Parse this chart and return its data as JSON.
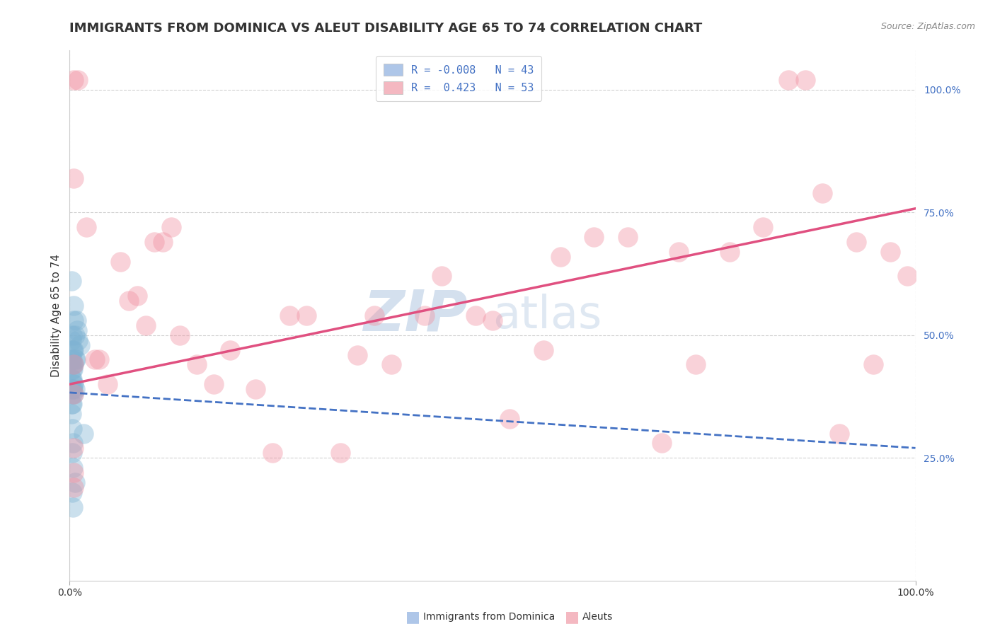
{
  "title": "IMMIGRANTS FROM DOMINICA VS ALEUT DISABILITY AGE 65 TO 74 CORRELATION CHART",
  "source": "Source: ZipAtlas.com",
  "ylabel": "Disability Age 65 to 74",
  "xlim": [
    0.0,
    1.0
  ],
  "ylim": [
    0.0,
    1.08
  ],
  "y_tick_positions": [
    0.25,
    0.5,
    0.75,
    1.0
  ],
  "y_tick_labels": [
    "25.0%",
    "50.0%",
    "75.0%",
    "100.0%"
  ],
  "x_tick_positions": [
    0.0,
    1.0
  ],
  "x_tick_labels": [
    "0.0%",
    "100.0%"
  ],
  "blue_scatter_x": [
    0.005,
    0.008,
    0.003,
    0.006,
    0.009,
    0.002,
    0.003,
    0.004,
    0.005,
    0.007,
    0.003,
    0.002,
    0.004,
    0.003,
    0.005,
    0.006,
    0.003,
    0.004,
    0.002,
    0.003,
    0.004,
    0.005,
    0.006,
    0.003,
    0.002,
    0.004,
    0.003,
    0.005,
    0.003,
    0.002,
    0.01,
    0.012,
    0.002,
    0.003,
    0.004,
    0.016,
    0.003,
    0.004,
    0.006,
    0.003,
    0.004,
    0.005,
    0.002
  ],
  "blue_scatter_y": [
    0.53,
    0.53,
    0.5,
    0.5,
    0.51,
    0.49,
    0.47,
    0.47,
    0.47,
    0.45,
    0.45,
    0.45,
    0.44,
    0.44,
    0.44,
    0.45,
    0.43,
    0.43,
    0.41,
    0.41,
    0.4,
    0.4,
    0.39,
    0.39,
    0.39,
    0.39,
    0.38,
    0.38,
    0.36,
    0.36,
    0.49,
    0.48,
    0.34,
    0.31,
    0.28,
    0.3,
    0.26,
    0.23,
    0.2,
    0.18,
    0.15,
    0.56,
    0.61
  ],
  "pink_scatter_x": [
    0.005,
    0.01,
    0.02,
    0.03,
    0.035,
    0.045,
    0.06,
    0.07,
    0.08,
    0.09,
    0.1,
    0.11,
    0.12,
    0.13,
    0.15,
    0.17,
    0.19,
    0.22,
    0.24,
    0.26,
    0.28,
    0.32,
    0.34,
    0.36,
    0.38,
    0.42,
    0.44,
    0.48,
    0.5,
    0.52,
    0.56,
    0.58,
    0.62,
    0.66,
    0.7,
    0.72,
    0.74,
    0.78,
    0.82,
    0.85,
    0.87,
    0.89,
    0.91,
    0.93,
    0.95,
    0.97,
    0.99,
    0.005,
    0.005,
    0.005,
    0.005,
    0.005,
    0.005
  ],
  "pink_scatter_y": [
    1.02,
    1.02,
    0.72,
    0.45,
    0.45,
    0.4,
    0.65,
    0.57,
    0.58,
    0.52,
    0.69,
    0.69,
    0.72,
    0.5,
    0.44,
    0.4,
    0.47,
    0.39,
    0.26,
    0.54,
    0.54,
    0.26,
    0.46,
    0.54,
    0.44,
    0.54,
    0.62,
    0.54,
    0.53,
    0.33,
    0.47,
    0.66,
    0.7,
    0.7,
    0.28,
    0.67,
    0.44,
    0.67,
    0.72,
    1.02,
    1.02,
    0.79,
    0.3,
    0.69,
    0.44,
    0.67,
    0.62,
    0.82,
    0.27,
    0.44,
    0.22,
    0.19,
    0.38
  ],
  "blue_line_x": [
    0.0,
    1.0
  ],
  "blue_line_y": [
    0.383,
    0.27
  ],
  "pink_line_x": [
    0.0,
    1.0
  ],
  "pink_line_y": [
    0.4,
    0.758
  ],
  "bg_color": "#ffffff",
  "blue_color": "#7fb3d3",
  "pink_color": "#f090a0",
  "blue_line_color": "#4472c4",
  "pink_line_color": "#e05080",
  "watermark_zip": "ZIP",
  "watermark_atlas": "atlas",
  "title_fontsize": 13,
  "axis_label_fontsize": 11,
  "tick_fontsize": 10,
  "scatter_size": 420,
  "legend_blue_label": "R = -0.008   N = 43",
  "legend_pink_label": "R =  0.423   N = 53"
}
